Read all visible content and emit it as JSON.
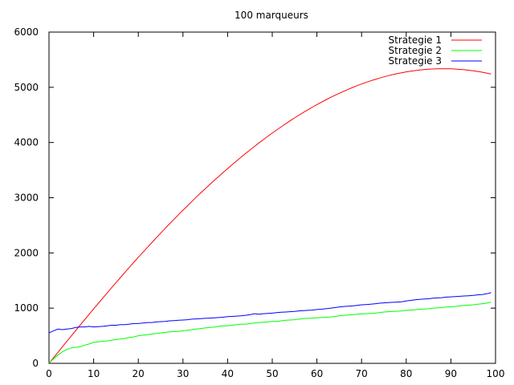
{
  "chart_data": {
    "type": "line",
    "title": "100 marqueurs",
    "xlabel": "",
    "ylabel": "",
    "xlim": [
      0,
      100
    ],
    "ylim": [
      0,
      6000
    ],
    "x_ticks": [
      0,
      10,
      20,
      30,
      40,
      50,
      60,
      70,
      80,
      90,
      100
    ],
    "y_ticks": [
      0,
      1000,
      2000,
      3000,
      4000,
      5000,
      6000
    ],
    "grid": false,
    "legend_position": "top-right",
    "x": [
      0,
      1,
      2,
      3,
      4,
      5,
      6,
      7,
      8,
      9,
      10,
      11,
      12,
      13,
      14,
      15,
      16,
      17,
      18,
      19,
      20,
      21,
      22,
      23,
      24,
      25,
      26,
      27,
      28,
      29,
      30,
      31,
      32,
      33,
      34,
      35,
      36,
      37,
      38,
      39,
      40,
      41,
      42,
      43,
      44,
      45,
      46,
      47,
      48,
      49,
      50,
      51,
      52,
      53,
      54,
      55,
      56,
      57,
      58,
      59,
      60,
      61,
      62,
      63,
      64,
      65,
      66,
      67,
      68,
      69,
      70,
      71,
      72,
      73,
      74,
      75,
      76,
      77,
      78,
      79,
      80,
      81,
      82,
      83,
      84,
      85,
      86,
      87,
      88,
      89,
      90,
      91,
      92,
      93,
      94,
      95,
      96,
      97,
      98,
      99
    ],
    "series": [
      {
        "name": "Strategie 1",
        "color": "#ff0000",
        "values": [
          0,
          100,
          199,
          299,
          398,
          497,
          596,
          694,
          792,
          889,
          986,
          1082,
          1178,
          1273,
          1368,
          1462,
          1555,
          1647,
          1739,
          1830,
          1920,
          2009,
          2097,
          2185,
          2272,
          2358,
          2443,
          2527,
          2610,
          2692,
          2773,
          2853,
          2932,
          3011,
          3088,
          3164,
          3239,
          3313,
          3385,
          3457,
          3528,
          3597,
          3666,
          3733,
          3799,
          3864,
          3928,
          3991,
          4052,
          4112,
          4171,
          4228,
          4284,
          4339,
          4393,
          4445,
          4496,
          4546,
          4594,
          4641,
          4686,
          4730,
          4773,
          4814,
          4854,
          4892,
          4928,
          4963,
          4997,
          5029,
          5060,
          5089,
          5116,
          5142,
          5167,
          5189,
          5211,
          5230,
          5248,
          5264,
          5279,
          5292,
          5303,
          5313,
          5321,
          5327,
          5332,
          5335,
          5336,
          5336,
          5334,
          5330,
          5325,
          5318,
          5309,
          5299,
          5287,
          5273,
          5258,
          5240
        ]
      },
      {
        "name": "Strategie 2",
        "color": "#00ff00",
        "values": [
          10,
          80,
          150,
          210,
          250,
          280,
          290,
          300,
          330,
          350,
          380,
          390,
          400,
          405,
          420,
          430,
          440,
          450,
          470,
          480,
          500,
          510,
          520,
          530,
          540,
          550,
          560,
          570,
          575,
          580,
          590,
          600,
          610,
          620,
          630,
          640,
          650,
          655,
          670,
          680,
          680,
          690,
          700,
          710,
          710,
          720,
          730,
          740,
          745,
          750,
          760,
          760,
          770,
          780,
          785,
          790,
          800,
          810,
          815,
          820,
          825,
          830,
          835,
          840,
          850,
          860,
          870,
          875,
          880,
          890,
          895,
          900,
          905,
          910,
          920,
          930,
          935,
          940,
          945,
          950,
          960,
          965,
          970,
          980,
          985,
          990,
          1000,
          1005,
          1010,
          1020,
          1025,
          1030,
          1040,
          1050,
          1055,
          1060,
          1070,
          1080,
          1090,
          1110
        ]
      },
      {
        "name": "Strategie 3",
        "color": "#0000ff",
        "values": [
          550,
          590,
          620,
          610,
          620,
          630,
          650,
          660,
          660,
          670,
          660,
          665,
          670,
          680,
          690,
          690,
          700,
          700,
          710,
          720,
          720,
          730,
          740,
          740,
          750,
          755,
          760,
          770,
          775,
          780,
          785,
          790,
          800,
          805,
          810,
          815,
          820,
          825,
          830,
          835,
          845,
          850,
          855,
          860,
          870,
          880,
          900,
          890,
          900,
          905,
          910,
          920,
          925,
          930,
          935,
          940,
          950,
          955,
          960,
          965,
          975,
          980,
          990,
          1000,
          1010,
          1020,
          1030,
          1035,
          1040,
          1050,
          1060,
          1065,
          1070,
          1080,
          1090,
          1095,
          1100,
          1105,
          1110,
          1115,
          1130,
          1140,
          1150,
          1160,
          1165,
          1170,
          1180,
          1185,
          1190,
          1200,
          1205,
          1210,
          1215,
          1220,
          1225,
          1230,
          1240,
          1245,
          1260,
          1280
        ]
      }
    ]
  }
}
